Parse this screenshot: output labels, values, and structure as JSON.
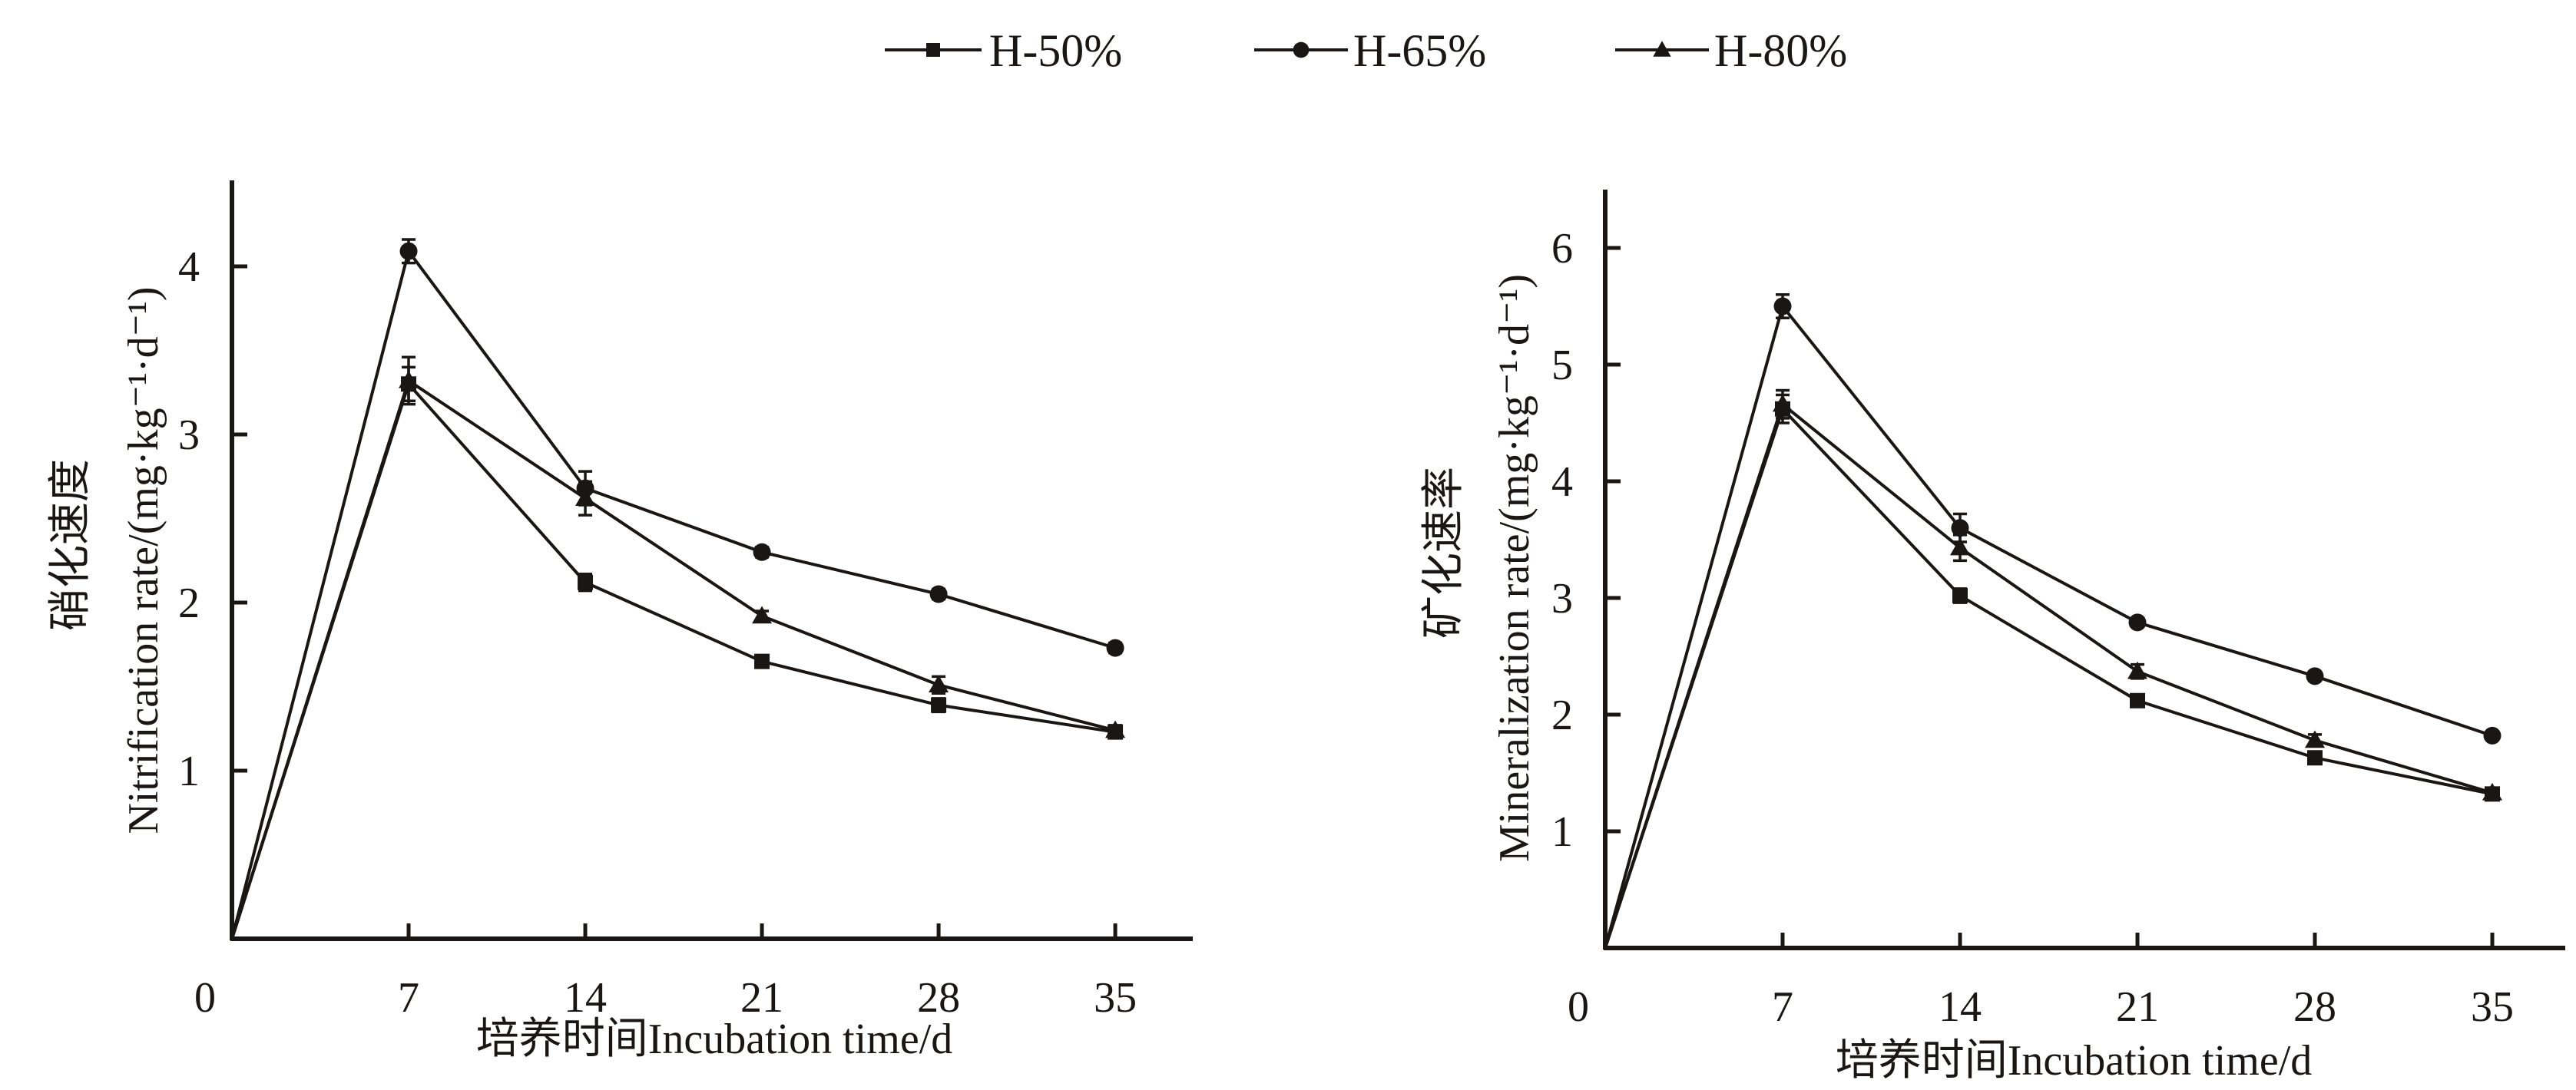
{
  "legend": {
    "items": [
      {
        "label": "H-50%",
        "marker": "square"
      },
      {
        "label": "H-65%",
        "marker": "circle"
      },
      {
        "label": "H-80%",
        "marker": "triangle"
      }
    ]
  },
  "chart_data": [
    {
      "type": "line",
      "title": "",
      "xlabel": "培养时间Incubation time/d",
      "ylabel_cn": "硝化速度",
      "ylabel": "Nitrification rate/(mg·kg⁻¹·d⁻¹)",
      "x": [
        0,
        7,
        14,
        21,
        28,
        35
      ],
      "x_ticks": [
        "0",
        "7",
        "14",
        "21",
        "28",
        "35"
      ],
      "y_ticks": [
        "1",
        "2",
        "3",
        "4"
      ],
      "y_tick_values": [
        1,
        2,
        3,
        4
      ],
      "xlim": [
        0,
        38
      ],
      "ylim": [
        0,
        4.5
      ],
      "grid": false,
      "legend_position": "top-center",
      "series": [
        {
          "name": "H-50%",
          "marker": "square",
          "values": [
            0,
            3.3,
            2.12,
            1.65,
            1.39,
            1.23
          ],
          "errors": [
            0,
            0.1,
            0.05,
            0.03,
            0.04,
            0.03
          ]
        },
        {
          "name": "H-65%",
          "marker": "circle",
          "values": [
            0,
            4.09,
            2.68,
            2.3,
            2.05,
            1.73
          ],
          "errors": [
            0,
            0.07,
            0.1,
            0.03,
            0.03,
            0.03
          ]
        },
        {
          "name": "H-80%",
          "marker": "triangle",
          "values": [
            0,
            3.32,
            2.62,
            1.92,
            1.51,
            1.24
          ],
          "errors": [
            0,
            0.14,
            0.1,
            0.03,
            0.05,
            0.03
          ]
        }
      ]
    },
    {
      "type": "line",
      "title": "",
      "xlabel": "培养时间Incubation time/d",
      "ylabel_cn": "矿化速率",
      "ylabel": "Mineralization rate/(mg·kg⁻¹·d⁻¹)",
      "x": [
        0,
        7,
        14,
        21,
        28,
        35
      ],
      "x_ticks": [
        "0",
        "7",
        "14",
        "21",
        "28",
        "35"
      ],
      "y_ticks": [
        "1",
        "2",
        "3",
        "4",
        "5",
        "6"
      ],
      "y_tick_values": [
        1,
        2,
        3,
        4,
        5,
        6
      ],
      "xlim": [
        0,
        38
      ],
      "ylim": [
        0,
        6.5
      ],
      "grid": false,
      "legend_position": "top-center",
      "series": [
        {
          "name": "H-50%",
          "marker": "square",
          "values": [
            0,
            4.62,
            3.02,
            2.12,
            1.63,
            1.32
          ],
          "errors": [
            0,
            0.12,
            0.06,
            0.04,
            0.05,
            0.04
          ]
        },
        {
          "name": "H-65%",
          "marker": "circle",
          "values": [
            0,
            5.5,
            3.6,
            2.79,
            2.33,
            1.82
          ],
          "errors": [
            0,
            0.1,
            0.12,
            0.03,
            0.04,
            0.03
          ]
        },
        {
          "name": "H-80%",
          "marker": "triangle",
          "values": [
            0,
            4.66,
            3.43,
            2.37,
            1.78,
            1.33
          ],
          "errors": [
            0,
            0.12,
            0.11,
            0.06,
            0.05,
            0.04
          ]
        }
      ]
    }
  ]
}
